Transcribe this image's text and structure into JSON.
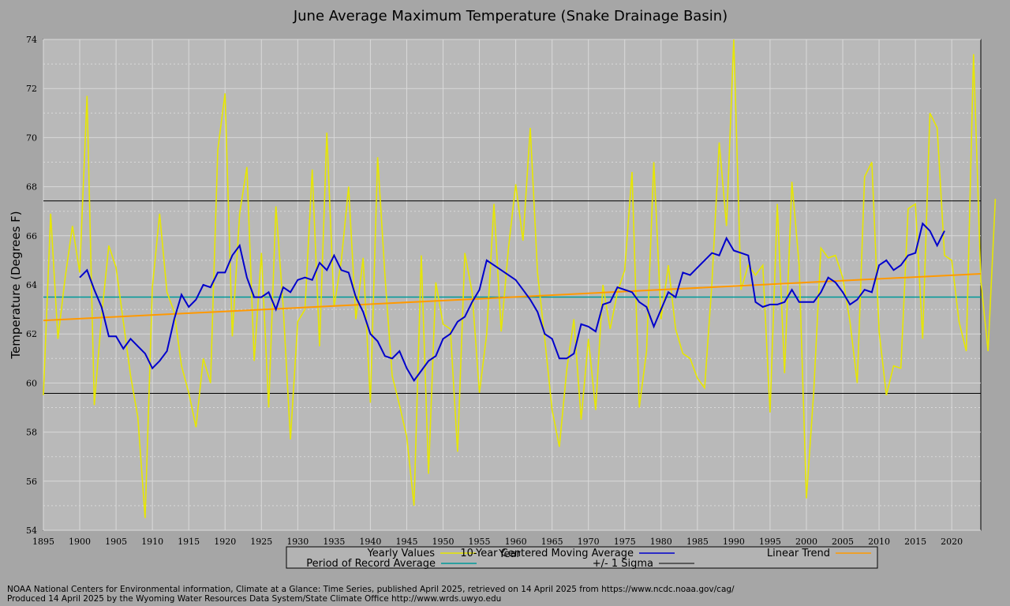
{
  "chart_data": {
    "type": "line",
    "title": "June Average Maximum Temperature (Snake Drainage Basin)",
    "xlabel": "Year",
    "ylabel": "Temperature (Degrees F)",
    "xlim": [
      1895,
      2024
    ],
    "ylim": [
      54,
      74
    ],
    "x_ticks": [
      1895,
      1900,
      1905,
      1910,
      1915,
      1920,
      1925,
      1930,
      1935,
      1940,
      1945,
      1950,
      1955,
      1960,
      1965,
      1970,
      1975,
      1980,
      1985,
      1990,
      1995,
      2000,
      2005,
      2010,
      2015,
      2020
    ],
    "y_ticks": [
      54,
      56,
      58,
      60,
      62,
      64,
      66,
      68,
      70,
      72,
      74
    ],
    "grid": true,
    "series": [
      {
        "name": "Yearly Values",
        "color": "#e6e600",
        "x_start": 1895,
        "values": [
          59.5,
          66.9,
          61.8,
          64.3,
          66.4,
          64.5,
          71.7,
          59.1,
          62.7,
          65.6,
          64.7,
          62.5,
          60.3,
          58.6,
          54.5,
          63.9,
          66.9,
          63.7,
          62.9,
          60.7,
          59.6,
          58.2,
          61,
          60,
          69.5,
          71.8,
          61.9,
          66.9,
          68.8,
          60.9,
          65.3,
          59,
          67.2,
          63.1,
          57.7,
          62.5,
          63,
          68.7,
          61.5,
          70.2,
          63.1,
          65,
          68,
          62.6,
          65.1,
          59.2,
          69.2,
          64.4,
          60.3,
          59.1,
          57.8,
          55,
          65.2,
          56.3,
          64.1,
          62.4,
          62.2,
          57.2,
          65.3,
          63.7,
          59.6,
          62,
          67.3,
          62.1,
          65.5,
          68.1,
          65.8,
          70.4,
          64.5,
          61.8,
          58.9,
          57.4,
          60.5,
          62.6,
          58.5,
          61.8,
          58.9,
          64,
          62.2,
          63.7,
          64.6,
          68.6,
          59,
          61.3,
          69,
          62.6,
          64.8,
          62.2,
          61.2,
          61,
          60.2,
          59.8,
          64.1,
          69.8,
          66.4,
          74,
          63.8,
          64.8,
          64.4,
          64.8,
          58.8,
          67.3,
          60.4,
          68.2,
          64.8,
          55.3,
          59.6,
          65.5,
          65.1,
          65.2,
          64.3,
          62.5,
          60,
          68.4,
          69,
          62.1,
          59.5,
          60.7,
          60.6,
          67.1,
          67.3,
          61.8,
          71,
          70.4,
          65.2,
          65,
          62.5,
          61.3,
          73.4,
          64.2,
          61.3,
          67.5
        ]
      },
      {
        "name": "10-Year Centered Moving Average",
        "color": "#0000cc",
        "x_start": 1900,
        "values": [
          64.3,
          64.6,
          63.8,
          63.1,
          61.9,
          61.9,
          61.4,
          61.8,
          61.5,
          61.2,
          60.6,
          60.9,
          61.3,
          62.6,
          63.6,
          63.1,
          63.4,
          64,
          63.9,
          64.5,
          64.5,
          65.2,
          65.6,
          64.3,
          63.5,
          63.5,
          63.7,
          63,
          63.9,
          63.7,
          64.2,
          64.3,
          64.2,
          64.9,
          64.6,
          65.2,
          64.6,
          64.5,
          63.5,
          62.9,
          62,
          61.7,
          61.1,
          61,
          61.3,
          60.6,
          60.1,
          60.5,
          60.9,
          61.1,
          61.8,
          62,
          62.5,
          62.7,
          63.3,
          63.8,
          65,
          64.8,
          64.6,
          64.4,
          64.2,
          63.8,
          63.4,
          62.9,
          62,
          61.8,
          61,
          61,
          61.2,
          62.4,
          62.3,
          62.1,
          63.2,
          63.3,
          63.9,
          63.8,
          63.7,
          63.3,
          63.1,
          62.3,
          63,
          63.7,
          63.5,
          64.5,
          64.4,
          64.7,
          65,
          65.3,
          65.2,
          65.9,
          65.4,
          65.3,
          65.2,
          63.3,
          63.1,
          63.2,
          63.2,
          63.3,
          63.8,
          63.3,
          63.3,
          63.3,
          63.7,
          64.3,
          64.1,
          63.7,
          63.2,
          63.4,
          63.8,
          63.7,
          64.8,
          65,
          64.6,
          64.8,
          65.2,
          65.3,
          66.5,
          66.2,
          65.6,
          66.2
        ]
      },
      {
        "name": "Linear Trend",
        "color": "#ff9900",
        "x": [
          1895,
          2024
        ],
        "values": [
          62.55,
          64.45
        ]
      },
      {
        "name": "Period of Record Average",
        "color": "#009999",
        "value": 63.5
      },
      {
        "name": "+/- 1 Sigma",
        "color": "#000000",
        "values": [
          59.58,
          67.42
        ]
      }
    ],
    "legend_position": "bottom"
  },
  "footer": {
    "line1": "NOAA National Centers for Environmental information, Climate at a Glance: Time Series, published April 2025, retrieved on 14 April 2025 from https://www.ncdc.noaa.gov/cag/",
    "line2": "Produced 14 April 2025 by the Wyoming Water Resources Data System/State Climate Office http://www.wrds.uwyo.edu"
  }
}
